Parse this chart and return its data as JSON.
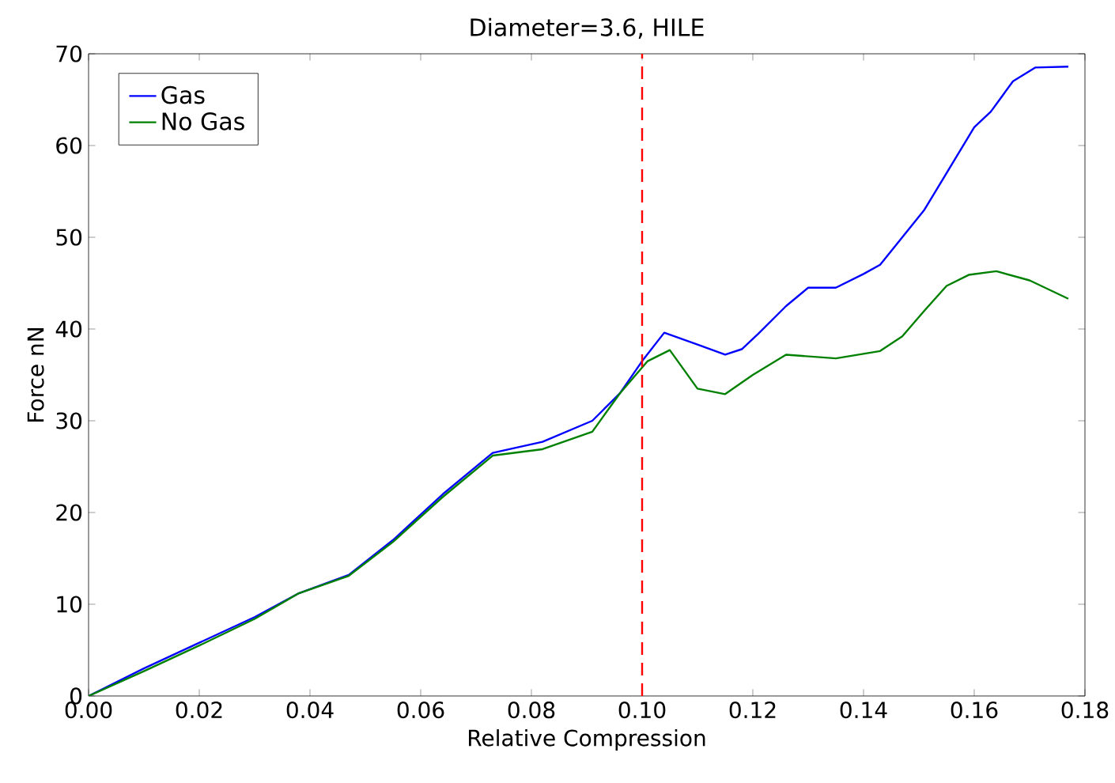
{
  "chart_data": {
    "type": "line",
    "title": "Diameter=3.6, HILE",
    "xlabel": "Relative Compression",
    "ylabel": "Force nN",
    "xlim": [
      0,
      0.18
    ],
    "ylim": [
      0,
      70
    ],
    "xticks": [
      {
        "value": 0,
        "label": "0.00"
      },
      {
        "value": 0.02,
        "label": "0.02"
      },
      {
        "value": 0.04,
        "label": "0.04"
      },
      {
        "value": 0.06,
        "label": "0.06"
      },
      {
        "value": 0.08,
        "label": "0.08"
      },
      {
        "value": 0.1,
        "label": "0.10"
      },
      {
        "value": 0.12,
        "label": "0.12"
      },
      {
        "value": 0.14,
        "label": "0.14"
      },
      {
        "value": 0.16,
        "label": "0.16"
      },
      {
        "value": 0.18,
        "label": "0.18"
      }
    ],
    "yticks": [
      0,
      10,
      20,
      30,
      40,
      50,
      60,
      70
    ],
    "legend": "top left",
    "grid": false,
    "ref_lines": [
      {
        "axis": "x",
        "value": 0.1,
        "color": "#ff0000",
        "line_style": "dashed"
      }
    ],
    "series": [
      {
        "name": "Gas",
        "color": "#0000ff",
        "x": [
          0,
          0.01,
          0.02,
          0.03,
          0.038,
          0.047,
          0.055,
          0.064,
          0.073,
          0.082,
          0.091,
          0.096,
          0.1,
          0.104,
          0.11,
          0.115,
          0.118,
          0.121,
          0.126,
          0.13,
          0.135,
          0.14,
          0.143,
          0.147,
          0.151,
          0.155,
          0.16,
          0.163,
          0.167,
          0.171,
          0.177
        ],
        "values": [
          0,
          3,
          5.8,
          8.6,
          11.2,
          13.2,
          17,
          22,
          26.5,
          27.7,
          30,
          33,
          36.5,
          39.6,
          38.3,
          37.2,
          37.8,
          39.5,
          42.5,
          44.5,
          44.5,
          46,
          47,
          50,
          53,
          57,
          62,
          63.7,
          67,
          68.5,
          68.6
        ]
      },
      {
        "name": "No Gas",
        "color": "#008000",
        "x": [
          0,
          0.01,
          0.02,
          0.03,
          0.038,
          0.047,
          0.055,
          0.064,
          0.073,
          0.082,
          0.091,
          0.096,
          0.101,
          0.105,
          0.11,
          0.115,
          0.12,
          0.126,
          0.135,
          0.143,
          0.147,
          0.151,
          0.155,
          0.159,
          0.164,
          0.17,
          0.177
        ],
        "values": [
          0,
          2.7,
          5.5,
          8.4,
          11.2,
          13.1,
          16.8,
          21.7,
          26.2,
          26.9,
          28.8,
          33,
          36.5,
          37.7,
          33.5,
          32.9,
          35,
          37.2,
          36.8,
          37.6,
          39.2,
          42,
          44.7,
          45.9,
          46.3,
          45.3,
          43.3
        ]
      }
    ]
  }
}
